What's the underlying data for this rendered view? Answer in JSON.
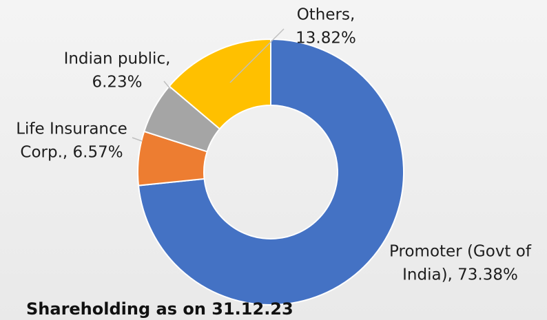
{
  "chart_data": {
    "type": "donut",
    "title": "Shareholding as on 31.12.23",
    "values": [
      73.38,
      6.57,
      6.23,
      13.82
    ],
    "labels": [
      [
        "Promoter (Govt of",
        "India), 73.38%"
      ],
      [
        "Life Insurance",
        "Corp., 6.57%"
      ],
      [
        "Indian public,",
        "6.23%"
      ],
      [
        "Others,",
        "13.82%"
      ]
    ],
    "colors": [
      "#4472c4",
      "#ed7d31",
      "#a5a5a5",
      "#ffc000"
    ]
  }
}
